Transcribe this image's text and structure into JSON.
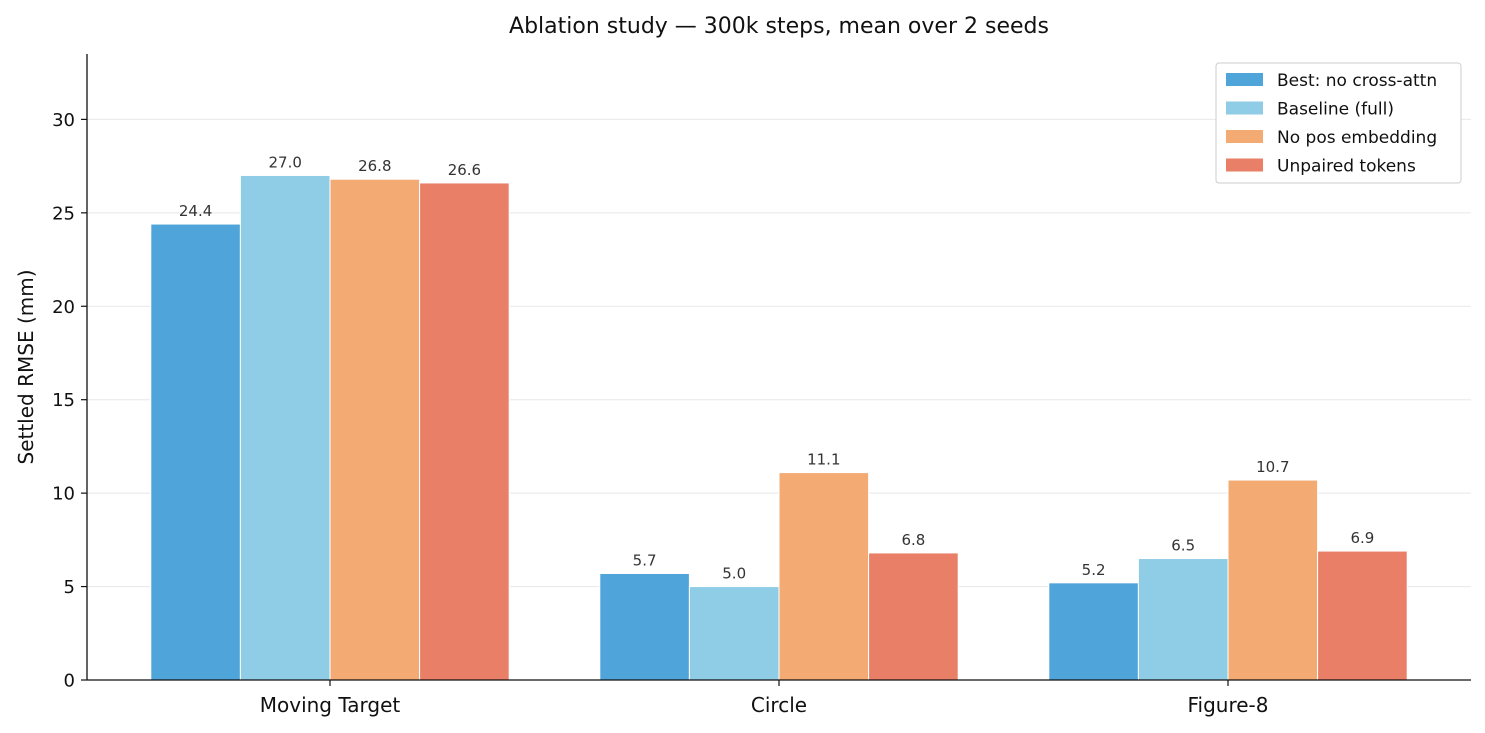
{
  "chart_data": {
    "type": "bar",
    "title": "Ablation study — 300k steps, mean over 2 seeds",
    "xlabel": "",
    "ylabel": "Settled RMSE (mm)",
    "ylim": [
      0,
      33.5
    ],
    "yticks": [
      0,
      5,
      10,
      15,
      20,
      25,
      30
    ],
    "grid": "horizontal",
    "legend_position": "top-right",
    "categories": [
      "Moving Target",
      "Circle",
      "Figure-8"
    ],
    "series": [
      {
        "name": "Best: no cross-attn",
        "color": "#4fa5da",
        "values": [
          24.4,
          5.7,
          5.2
        ],
        "labels": [
          "24.4",
          "5.7",
          "5.2"
        ]
      },
      {
        "name": "Baseline (full)",
        "color": "#8fcde6",
        "values": [
          27.0,
          5.0,
          6.5
        ],
        "labels": [
          "27.0",
          "5.0",
          "6.5"
        ]
      },
      {
        "name": "No pos embedding",
        "color": "#f3ab73",
        "values": [
          26.8,
          11.1,
          10.7
        ],
        "labels": [
          "26.8",
          "11.1",
          "10.7"
        ]
      },
      {
        "name": "Unpaired tokens",
        "color": "#e97f67",
        "values": [
          26.6,
          6.8,
          6.9
        ],
        "labels": [
          "26.6",
          "6.8",
          "6.9"
        ]
      }
    ]
  }
}
